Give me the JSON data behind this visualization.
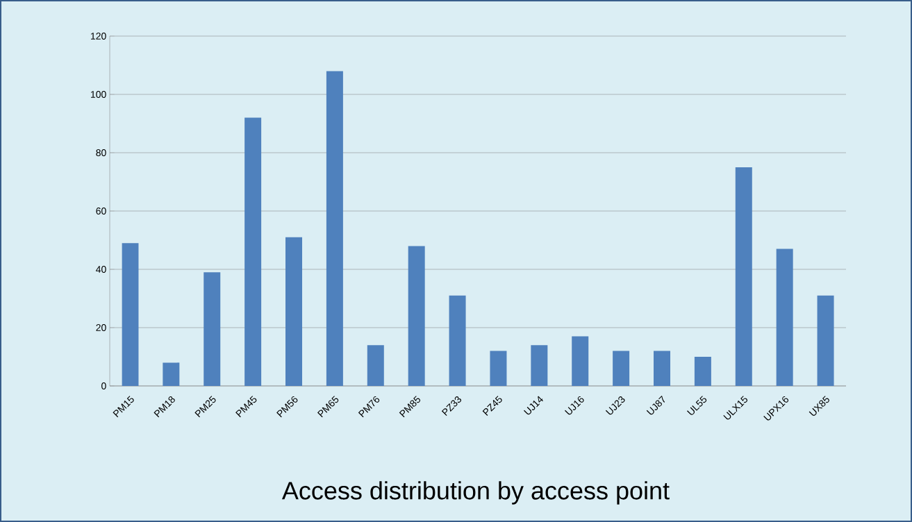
{
  "chart_data": {
    "type": "bar",
    "title": "Access distribution by access point",
    "categories": [
      "PM15",
      "PM18",
      "PM25",
      "PM45",
      "PM56",
      "PM65",
      "PM76",
      "PM85",
      "PZ33",
      "PZ45",
      "UJ14",
      "UJ16",
      "UJ23",
      "UJ87",
      "UL55",
      "ULX15",
      "UPX16",
      "UX85"
    ],
    "values": [
      49,
      8,
      39,
      92,
      51,
      108,
      14,
      48,
      31,
      12,
      14,
      17,
      12,
      12,
      10,
      75,
      47,
      31
    ],
    "color": "#4f81bd",
    "ylim": [
      0,
      120
    ],
    "yticks": [
      0,
      20,
      40,
      60,
      80,
      100,
      120
    ],
    "grid": "y"
  }
}
